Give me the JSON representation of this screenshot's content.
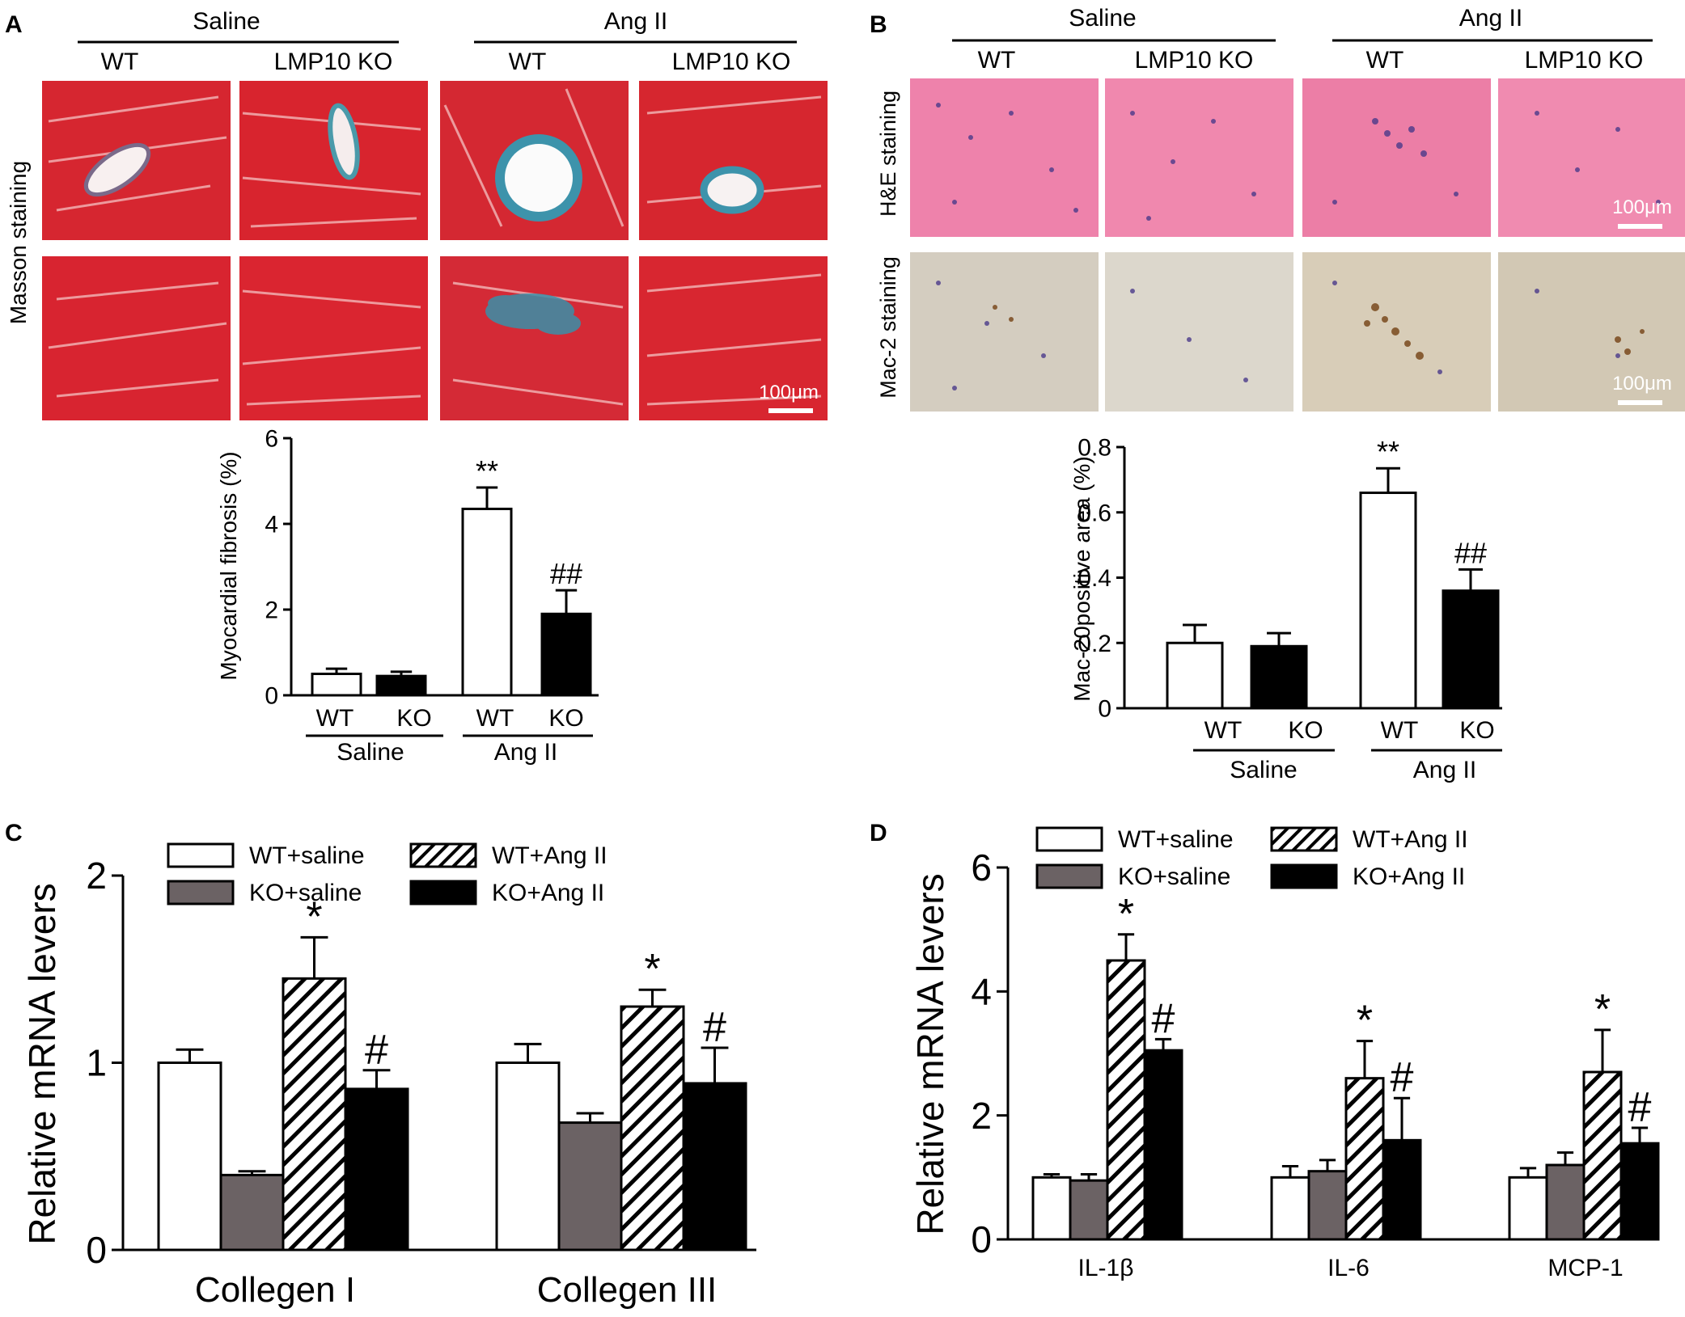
{
  "panel_labels": [
    "A",
    "B",
    "C",
    "D"
  ],
  "panelA": {
    "groups": [
      "Saline",
      "Ang II"
    ],
    "subgroups": [
      "WT",
      "LMP10 KO",
      "WT",
      "LMP10 KO"
    ],
    "row_labels": [
      "Masson staining"
    ],
    "scale_bar": "100μm",
    "colors": {
      "myocardium": "#d8202a",
      "collagen": "#3a8fa8"
    }
  },
  "panelB": {
    "groups": [
      "Saline",
      "Ang II"
    ],
    "subgroups": [
      "WT",
      "LMP10 KO",
      "WT",
      "LMP10 KO"
    ],
    "row_labels": [
      "H&E staining",
      "Mac-2 staining"
    ],
    "scale_bars": [
      "100μm",
      "100μm"
    ],
    "colors": {
      "he": "#ec7ea8",
      "mac2_bg": "#d8d2c6",
      "nuclei": "#4a3a8a",
      "mac2_positive": "#7a4a1e"
    }
  },
  "chart_data": [
    {
      "id": "A",
      "type": "bar",
      "categories": [
        "WT",
        "KO",
        "WT",
        "KO"
      ],
      "groups": [
        "Saline",
        "Ang II"
      ],
      "values": [
        0.5,
        0.45,
        4.35,
        1.9
      ],
      "errors": [
        0.12,
        0.1,
        0.5,
        0.55
      ],
      "fills": [
        "white",
        "black",
        "white",
        "black"
      ],
      "annotations": [
        "",
        "",
        "**",
        "##"
      ],
      "ylabel": "Myocardial fibrosis (%)",
      "ylim": [
        0,
        6
      ],
      "yticks": [
        "0",
        "2",
        "4",
        "6"
      ]
    },
    {
      "id": "B",
      "type": "bar",
      "categories": [
        "WT",
        "KO",
        "WT",
        "KO"
      ],
      "groups": [
        "Saline",
        "Ang II"
      ],
      "values": [
        0.2,
        0.19,
        0.66,
        0.36
      ],
      "errors": [
        0.055,
        0.04,
        0.075,
        0.065
      ],
      "fills": [
        "white",
        "black",
        "white",
        "black"
      ],
      "annotations": [
        "",
        "",
        "**",
        "##"
      ],
      "ylabel": "Mac-20positive area (%)",
      "ylim": [
        0,
        0.8
      ],
      "yticks": [
        "0",
        "0.2",
        "0.4",
        "0.6",
        "0.8"
      ]
    },
    {
      "id": "C",
      "type": "bar",
      "categories": [
        "Collegen I",
        "Collegen III"
      ],
      "series": [
        {
          "name": "WT+saline",
          "values": [
            1.0,
            1.0
          ],
          "errors": [
            0.07,
            0.1
          ],
          "annotations": [
            "",
            ""
          ]
        },
        {
          "name": "KO+saline",
          "values": [
            0.4,
            0.68
          ],
          "errors": [
            0.02,
            0.05
          ],
          "annotations": [
            "",
            ""
          ]
        },
        {
          "name": "WT+Ang II",
          "values": [
            1.45,
            1.3
          ],
          "errors": [
            0.22,
            0.09
          ],
          "annotations": [
            "*",
            "*"
          ]
        },
        {
          "name": "KO+Ang II",
          "values": [
            0.86,
            0.89
          ],
          "errors": [
            0.1,
            0.19
          ],
          "annotations": [
            "#",
            "#"
          ]
        }
      ],
      "series_styles": [
        "white",
        "gray",
        "hatch",
        "black"
      ],
      "ylabel": "Relative mRNA levers",
      "ylim": [
        0,
        2
      ],
      "yticks": [
        "0",
        "1",
        "2"
      ],
      "legend": "top"
    },
    {
      "id": "D",
      "type": "bar",
      "categories": [
        "IL-1β",
        "IL-6",
        "MCP-1"
      ],
      "series": [
        {
          "name": "WT+saline",
          "values": [
            1.0,
            1.0,
            1.0
          ],
          "errors": [
            0.05,
            0.18,
            0.15
          ],
          "annotations": [
            "",
            "",
            ""
          ]
        },
        {
          "name": "KO+saline",
          "values": [
            0.95,
            1.1,
            1.2
          ],
          "errors": [
            0.1,
            0.18,
            0.2
          ],
          "annotations": [
            "",
            "",
            ""
          ]
        },
        {
          "name": "WT+Ang II",
          "values": [
            4.5,
            2.6,
            2.7
          ],
          "errors": [
            0.42,
            0.6,
            0.68
          ],
          "annotations": [
            "*",
            "*",
            "*"
          ]
        },
        {
          "name": "KO+Ang II",
          "values": [
            3.05,
            1.6,
            1.55
          ],
          "errors": [
            0.18,
            0.68,
            0.25
          ],
          "annotations": [
            "#",
            "#",
            "#"
          ]
        }
      ],
      "series_styles": [
        "white",
        "gray",
        "hatch",
        "black"
      ],
      "ylabel": "Relative mRNA levers",
      "ylim": [
        0,
        6
      ],
      "yticks": [
        "0",
        "2",
        "4",
        "6"
      ],
      "legend": "top"
    }
  ],
  "style": {
    "gray_fill": "#6b6264",
    "bar_stroke": "#000000"
  }
}
